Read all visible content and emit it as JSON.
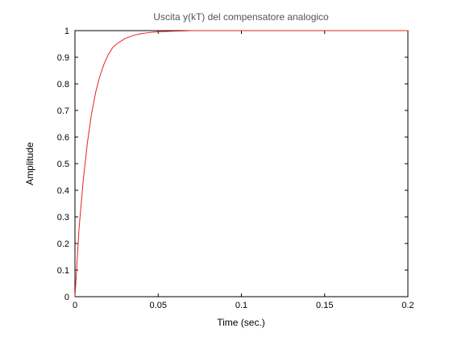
{
  "chart_data": {
    "type": "line",
    "title": "Uscita y(kT) del compensatore analogico",
    "xlabel": "Time (sec.)",
    "ylabel": "Amplitude",
    "xlim": [
      0,
      0.2
    ],
    "ylim": [
      0,
      1
    ],
    "x_ticks": [
      "0",
      "0.05",
      "0.1",
      "0.15",
      "0.2"
    ],
    "y_ticks": [
      "0",
      "0.1",
      "0.2",
      "0.3",
      "0.4",
      "0.5",
      "0.6",
      "0.7",
      "0.8",
      "0.9",
      "1"
    ],
    "grid": false,
    "series": [
      {
        "color": "#e8201e",
        "x": [
          0,
          0.0025,
          0.005,
          0.0075,
          0.01,
          0.0125,
          0.015,
          0.0175,
          0.02,
          0.0225,
          0.025,
          0.03,
          0.035,
          0.04,
          0.045,
          0.05,
          0.055,
          0.06,
          0.065,
          0.07,
          0.08,
          0.1,
          0.15,
          0.2
        ],
        "y": [
          0,
          0.26,
          0.44,
          0.58,
          0.69,
          0.77,
          0.83,
          0.875,
          0.91,
          0.935,
          0.95,
          0.97,
          0.982,
          0.989,
          0.993,
          0.996,
          0.997,
          0.998,
          0.999,
          1.0,
          1.0,
          1.0,
          1.0,
          1.0
        ]
      },
      {
        "color": "#000000",
        "dashed": true,
        "x": [
          0,
          0.2
        ],
        "y": [
          0,
          0
        ]
      }
    ]
  }
}
